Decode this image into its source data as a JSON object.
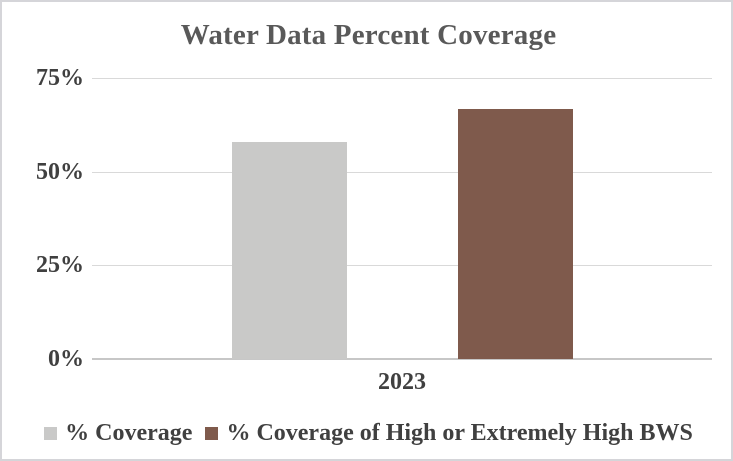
{
  "window": {
    "background": "#ffffff",
    "border_color": "#d5d5d9"
  },
  "chart_data": {
    "type": "bar",
    "title": "Water Data Percent Coverage",
    "categories": [
      "2023"
    ],
    "series": [
      {
        "name": "% Coverage",
        "values": [
          58
        ],
        "color": "#c9c9c8"
      },
      {
        "name": "% Coverage of High or Extremely High BWS",
        "values": [
          66.7
        ],
        "color": "#7f5a4c"
      }
    ],
    "xlabel": "",
    "ylabel": "",
    "ylim": [
      0,
      75
    ],
    "ytick_values": [
      0,
      25,
      50,
      75
    ],
    "ytick_labels": [
      "0%",
      "25%",
      "50%",
      "75%"
    ],
    "grid": true,
    "legend_position": "bottom",
    "text_color": "#404040",
    "title_color": "#595959",
    "gridline_color": "#d9d9d9",
    "axis_line_color": "#c7c7c7"
  }
}
